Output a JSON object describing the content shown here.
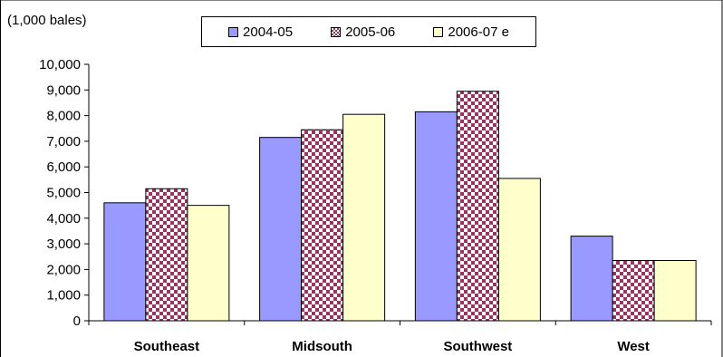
{
  "chart_data": {
    "type": "bar",
    "unit_label": "(1,000 bales)",
    "categories": [
      "Southeast",
      "Midsouth",
      "Southwest",
      "West"
    ],
    "series": [
      {
        "name": "2004-05",
        "values": [
          4600,
          7150,
          8150,
          3300
        ],
        "color": "#9999ff",
        "pattern": "solid"
      },
      {
        "name": "2005-06",
        "values": [
          5150,
          7450,
          8950,
          2350
        ],
        "color": "#993366",
        "pattern": "checker"
      },
      {
        "name": "2006-07 e",
        "values": [
          4500,
          8050,
          5550,
          2350
        ],
        "color": "#ffffcc",
        "pattern": "solid"
      }
    ],
    "ylim": [
      0,
      10000
    ],
    "yticks": [
      "0",
      "1,000",
      "2,000",
      "3,000",
      "4,000",
      "5,000",
      "6,000",
      "7,000",
      "8,000",
      "9,000",
      "10,000"
    ],
    "legend_position": "top",
    "grid": false
  }
}
